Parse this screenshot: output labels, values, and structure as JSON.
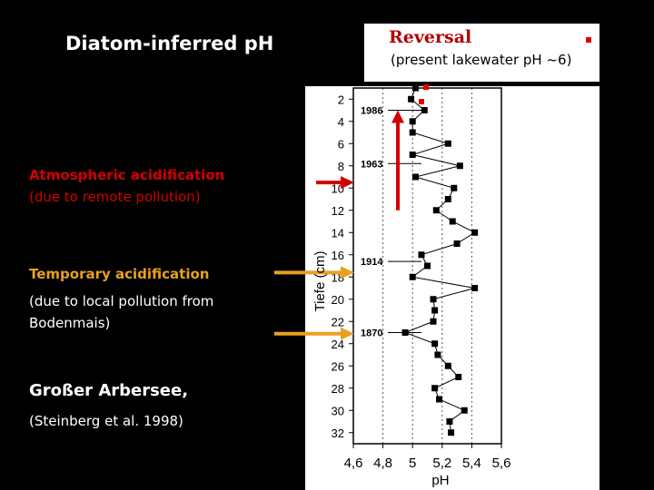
{
  "slide": {
    "title": "Diatom-inferred pH"
  },
  "reversal": {
    "title": "Reversal",
    "note": "(present lakewater pH ~6)"
  },
  "labels": {
    "atmospheric_title": "Atmospheric acidification",
    "atmospheric_sub": "(due to remote pollution)",
    "temporary_title": "Temporary acidification",
    "temporary_sub": "(due to local pollution from Bodenmais)",
    "site_name": "Großer Arbersee,",
    "citation": "(Steinberg et al. 1998)"
  },
  "colors": {
    "red_accent": "#d40000",
    "orange_accent": "#e8a020",
    "marker_red": "#e00000"
  },
  "chart_data": {
    "type": "line",
    "xlabel": "pH",
    "ylabel": "Tiefe (cm)",
    "xlim": [
      4.6,
      5.6
    ],
    "ylim": [
      1,
      33
    ],
    "x_ticks": [
      "4,6",
      "4,8",
      "5",
      "5,2",
      "5,4",
      "5,6"
    ],
    "y_ticks": [
      2,
      4,
      6,
      8,
      10,
      12,
      14,
      16,
      18,
      20,
      22,
      24,
      26,
      28,
      30,
      32
    ],
    "grid": "dotted vertical",
    "series": [
      {
        "depth": [
          1,
          2,
          3,
          4,
          5,
          6,
          7,
          8,
          9,
          10,
          11,
          12,
          13,
          14,
          15,
          16,
          17,
          18,
          19,
          20,
          21,
          22,
          23,
          24,
          25,
          26,
          27,
          28,
          29,
          30,
          31,
          32
        ],
        "ph": [
          5.02,
          4.99,
          5.08,
          5.0,
          5.0,
          5.24,
          5.0,
          5.32,
          5.02,
          5.28,
          5.24,
          5.16,
          5.27,
          5.42,
          5.3,
          5.06,
          5.1,
          5.0,
          5.42,
          5.14,
          5.15,
          5.14,
          4.95,
          5.15,
          5.17,
          5.24,
          5.31,
          5.15,
          5.18,
          5.35,
          5.25,
          5.26
        ]
      }
    ],
    "date_markers": [
      {
        "label": "1986",
        "depth": 3
      },
      {
        "label": "1963",
        "depth": 7.8
      },
      {
        "label": "1914",
        "depth": 16.6
      },
      {
        "label": "1870",
        "depth": 23
      }
    ],
    "arrows": [
      {
        "depth": 9.5,
        "color": "#d40000"
      },
      {
        "depth": 17.6,
        "color": "#e8a020"
      },
      {
        "depth": 23.1,
        "color": "#e8a020"
      }
    ],
    "reversal_arrow": {
      "from_depth": 12,
      "to_depth": 3
    }
  }
}
